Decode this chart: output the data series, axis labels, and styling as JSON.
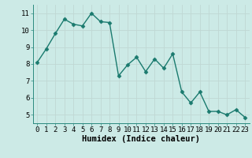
{
  "x": [
    0,
    1,
    2,
    3,
    4,
    5,
    6,
    7,
    8,
    9,
    10,
    11,
    12,
    13,
    14,
    15,
    16,
    17,
    18,
    19,
    20,
    21,
    22,
    23
  ],
  "y": [
    8.1,
    8.9,
    9.8,
    10.65,
    10.35,
    10.25,
    11.0,
    10.5,
    10.45,
    7.3,
    7.95,
    8.4,
    7.55,
    8.3,
    7.75,
    8.6,
    6.35,
    5.7,
    6.35,
    5.2,
    5.2,
    5.0,
    5.3,
    4.85
  ],
  "line_color": "#1a7a6e",
  "marker": "D",
  "marker_size": 2.5,
  "line_width": 1.0,
  "xlabel": "Humidex (Indice chaleur)",
  "xlabel_fontsize": 7.5,
  "ylabel_ticks": [
    5,
    6,
    7,
    8,
    9,
    10,
    11
  ],
  "xlim": [
    -0.5,
    23.5
  ],
  "ylim": [
    4.5,
    11.5
  ],
  "background_color": "#cceae6",
  "grid_color": "#c0d8d4",
  "tick_label_fontsize": 6.5,
  "xtick_labels": [
    "0",
    "1",
    "2",
    "3",
    "4",
    "5",
    "6",
    "7",
    "8",
    "9",
    "10",
    "11",
    "12",
    "13",
    "14",
    "15",
    "16",
    "17",
    "18",
    "19",
    "20",
    "21",
    "22",
    "23"
  ]
}
